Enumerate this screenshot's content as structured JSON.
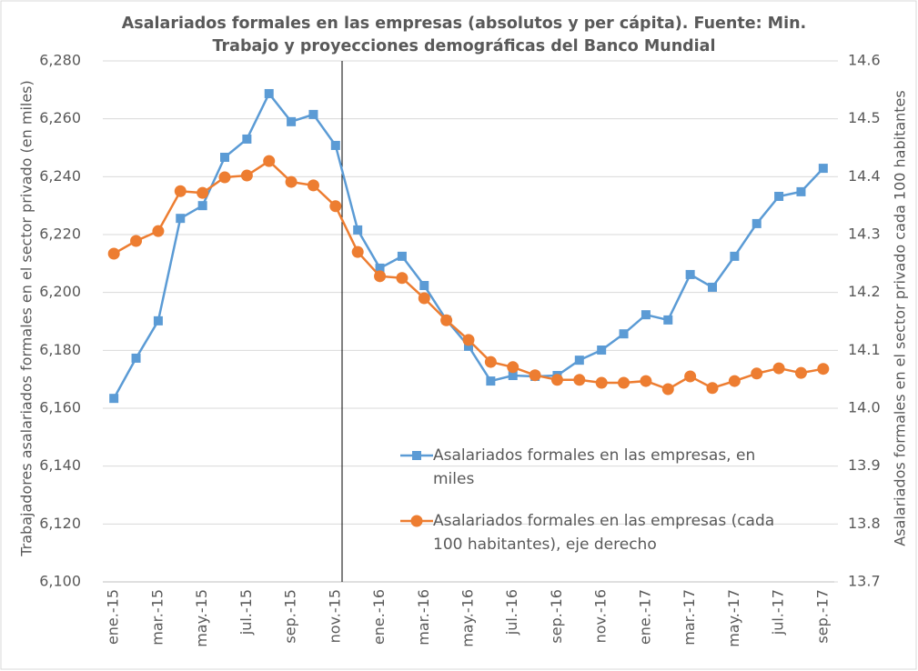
{
  "chart_data": {
    "type": "line",
    "title": "Asalariados formales en las empresas (absolutos y per cápita). Fuente: Min. Trabajo y proyecciones demográficas del Banco Mundial",
    "y_label": "Trabajadores asalariados formales en el sector privado (en miles)",
    "y2_label": "Asalariados formales en el sector privado cada 100 habitantes",
    "categories": [
      "ene.-15",
      null,
      "mar.-15",
      null,
      "may.-15",
      null,
      "jul.-15",
      null,
      "sep.-15",
      null,
      "nov.-15",
      null,
      "ene.-16",
      null,
      "mar.-16",
      null,
      "may.-16",
      null,
      "jul.-16",
      null,
      "sep.-16",
      null,
      "nov.-16",
      null,
      "ene.-17",
      null,
      "mar.-17",
      null,
      "may.-17",
      null,
      "jul.-17",
      null,
      "sep.-17"
    ],
    "series": [
      {
        "name": "Asalariados formales en las empresas, en miles",
        "color": "#5b9bd5",
        "marker": "square",
        "values": [
          6163.4,
          6177.3,
          6190.2,
          6225.6,
          6230,
          6246.7,
          6253,
          6268.7,
          6259,
          6261.5,
          6250.8,
          6221.6,
          6208.4,
          6212.5,
          6202.4,
          6190.5,
          6181.4,
          6169.4,
          6171.3,
          6171,
          6171.3,
          6176.6,
          6180.1,
          6185.7,
          6192.3,
          6190.5,
          6206.2,
          6201.8,
          6212.5,
          6223.8,
          6233.2,
          6234.8,
          6242.9
        ]
      },
      {
        "name": "Asalariados formales en las empresas (cada 100 habitantes), eje derecho",
        "color": "#ed7d31",
        "marker": "circle",
        "axis": "y2",
        "values": [
          14.267,
          14.289,
          14.306,
          14.375,
          14.372,
          14.399,
          14.402,
          14.427,
          14.391,
          14.385,
          14.349,
          14.27,
          14.228,
          14.225,
          14.19,
          14.152,
          14.118,
          14.08,
          14.071,
          14.057,
          14.049,
          14.049,
          14.044,
          14.044,
          14.047,
          14.033,
          14.055,
          14.035,
          14.047,
          14.06,
          14.069,
          14.061,
          14.068
        ]
      }
    ],
    "ylim": [
      6100,
      6280
    ],
    "yticks": [
      {
        "value": 6100,
        "label": "6,100"
      },
      {
        "value": 6120,
        "label": "6,120"
      },
      {
        "value": 6140,
        "label": "6,140"
      },
      {
        "value": 6160,
        "label": "6,160"
      },
      {
        "value": 6180,
        "label": "6,180"
      },
      {
        "value": 6200,
        "label": "6,200"
      },
      {
        "value": 6220,
        "label": "6,220"
      },
      {
        "value": 6240,
        "label": "6,240"
      },
      {
        "value": 6260,
        "label": "6,260"
      },
      {
        "value": 6280,
        "label": "6,280"
      }
    ],
    "y2lim": [
      13.7,
      14.6
    ],
    "y2ticks": [
      13.7,
      13.8,
      13.9,
      {
        "value": 14,
        "label": "14.0"
      },
      14.1,
      14.2,
      14.3,
      14.4,
      14.5,
      14.6
    ],
    "grid": true
  }
}
